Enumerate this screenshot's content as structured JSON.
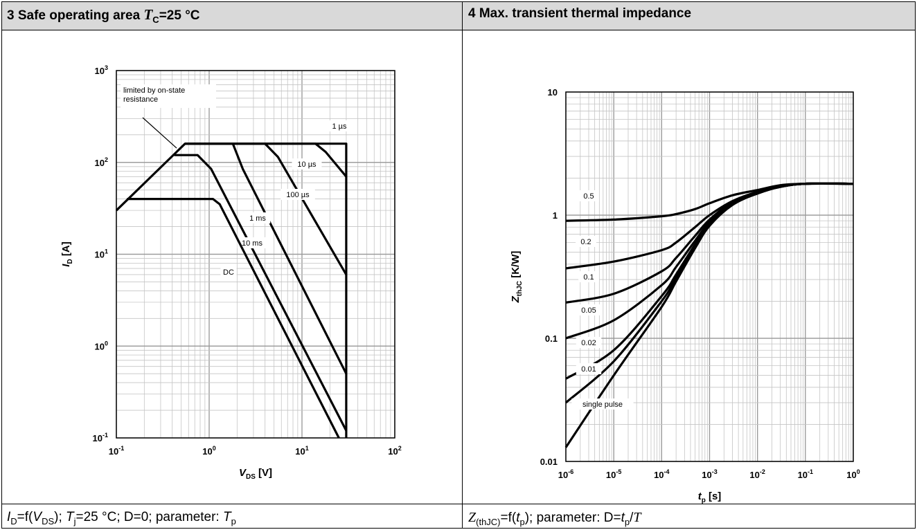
{
  "panel_left": {
    "title_num": "3 Safe operating area ",
    "title_var": "T",
    "title_sub": "C",
    "title_rest": "=25 °C",
    "caption": {
      "p1": "I",
      "p1s": "D",
      "p2": "=f(",
      "p3": "V",
      "p3s": "DS",
      "p4": "); ",
      "p5": "T",
      "p5s": "j",
      "p6": "=25 °C; D=0; parameter: ",
      "p7": "T",
      "p7s": "p"
    }
  },
  "panel_right": {
    "title": "4 Max. transient thermal impedance",
    "caption": {
      "p1": "Z",
      "p1s": "(thJC)",
      "p2": "=f(",
      "p3": "t",
      "p3s": "p",
      "p4": "); parameter: D=",
      "p5": "t",
      "p5s": "p",
      "p6": "/",
      "p7": "T"
    }
  },
  "chart_data": [
    {
      "type": "line",
      "title": "3 Safe operating area TC=25 °C",
      "xlabel": "VDS [V]",
      "xlabel_main": "V",
      "xlabel_sub": "DS",
      "xlabel_unit": " [V]",
      "ylabel": "ID [A]",
      "ylabel_main": "I",
      "ylabel_sub": "D",
      "ylabel_unit": " [A]",
      "xscale": "log",
      "yscale": "log",
      "xlim": [
        0.1,
        100
      ],
      "ylim": [
        0.1,
        1000
      ],
      "xticks": [
        {
          "m": "10",
          "e": "-1"
        },
        {
          "m": "10",
          "e": "0"
        },
        {
          "m": "10",
          "e": "1"
        },
        {
          "m": "10",
          "e": "2"
        }
      ],
      "yticks": [
        {
          "m": "10",
          "e": "-1"
        },
        {
          "m": "10",
          "e": "0"
        },
        {
          "m": "10",
          "e": "1"
        },
        {
          "m": "10",
          "e": "2"
        },
        {
          "m": "10",
          "e": "3"
        }
      ],
      "grid": true,
      "annotation": {
        "lines": [
          "limited by on-state",
          "resistance"
        ]
      },
      "series": [
        {
          "name": "1 µs",
          "label": "1 µs",
          "points": [
            [
              0.1,
              30
            ],
            [
              0.55,
              160
            ],
            [
              30,
              160
            ],
            [
              30,
              0.1
            ]
          ]
        },
        {
          "name": "10 µs",
          "label": "10 µs",
          "points": [
            [
              0.55,
              160
            ],
            [
              14,
              160
            ],
            [
              18,
              130
            ],
            [
              30,
              70
            ]
          ]
        },
        {
          "name": "100 µs",
          "label": "100 µs",
          "points": [
            [
              0.55,
              160
            ],
            [
              4,
              160
            ],
            [
              5.5,
              115
            ],
            [
              30,
              6
            ]
          ]
        },
        {
          "name": "1 ms",
          "label": "1 ms",
          "points": [
            [
              0.55,
              160
            ],
            [
              1.8,
              160
            ],
            [
              2.3,
              85
            ],
            [
              30,
              0.5
            ]
          ]
        },
        {
          "name": "10 ms",
          "label": "10 ms",
          "points": [
            [
              0.42,
              120
            ],
            [
              0.75,
              120
            ],
            [
              1.05,
              85
            ],
            [
              30,
              0.12
            ]
          ]
        },
        {
          "name": "DC",
          "label": "DC",
          "points": [
            [
              0.13,
              40
            ],
            [
              1.1,
              40
            ],
            [
              1.3,
              35
            ],
            [
              25,
              0.1
            ]
          ]
        }
      ]
    },
    {
      "type": "line",
      "title": "4 Max. transient thermal impedance",
      "xlabel": "tp [s]",
      "xlabel_main": "t",
      "xlabel_sub": "p",
      "xlabel_unit": " [s]",
      "ylabel": "ZthJC [K/W]",
      "ylabel_main": "Z",
      "ylabel_sub": "thJC",
      "ylabel_unit": " [K/W]",
      "xscale": "log",
      "yscale": "log",
      "xlim": [
        1e-06,
        1
      ],
      "ylim": [
        0.01,
        10
      ],
      "xticks": [
        {
          "m": "10",
          "e": "-6"
        },
        {
          "m": "10",
          "e": "-5"
        },
        {
          "m": "10",
          "e": "-4"
        },
        {
          "m": "10",
          "e": "-3"
        },
        {
          "m": "10",
          "e": "-2"
        },
        {
          "m": "10",
          "e": "-1"
        },
        {
          "m": "10",
          "e": "0"
        }
      ],
      "yticks": [
        {
          "m": "0.01",
          "e": ""
        },
        {
          "m": "0.1",
          "e": ""
        },
        {
          "m": "1",
          "e": ""
        },
        {
          "m": "10",
          "e": ""
        }
      ],
      "grid": true,
      "series": [
        {
          "name": "0.5",
          "label": "0.5",
          "points": [
            [
              1e-06,
              0.9
            ],
            [
              1e-05,
              0.92
            ],
            [
              0.0001,
              0.98
            ],
            [
              0.0002,
              1.02
            ],
            [
              0.0005,
              1.12
            ],
            [
              0.001,
              1.25
            ],
            [
              0.003,
              1.45
            ],
            [
              0.01,
              1.6
            ],
            [
              0.03,
              1.75
            ],
            [
              0.1,
              1.8
            ],
            [
              1,
              1.8
            ]
          ]
        },
        {
          "name": "0.2",
          "label": "0.2",
          "points": [
            [
              1e-06,
              0.37
            ],
            [
              1e-05,
              0.42
            ],
            [
              0.0001,
              0.52
            ],
            [
              0.0002,
              0.6
            ],
            [
              0.0005,
              0.8
            ],
            [
              0.001,
              1.0
            ],
            [
              0.003,
              1.3
            ],
            [
              0.01,
              1.55
            ],
            [
              0.03,
              1.72
            ],
            [
              0.1,
              1.8
            ],
            [
              1,
              1.8
            ]
          ]
        },
        {
          "name": "0.1",
          "label": "0.1",
          "points": [
            [
              1e-06,
              0.195
            ],
            [
              1e-05,
              0.23
            ],
            [
              0.0001,
              0.35
            ],
            [
              0.0002,
              0.45
            ],
            [
              0.0005,
              0.68
            ],
            [
              0.001,
              0.92
            ],
            [
              0.003,
              1.28
            ],
            [
              0.01,
              1.53
            ],
            [
              0.03,
              1.7
            ],
            [
              0.1,
              1.8
            ],
            [
              1,
              1.8
            ]
          ]
        },
        {
          "name": "0.05",
          "label": "0.05",
          "points": [
            [
              1e-06,
              0.1
            ],
            [
              1e-05,
              0.14
            ],
            [
              0.0001,
              0.27
            ],
            [
              0.0002,
              0.38
            ],
            [
              0.0005,
              0.62
            ],
            [
              0.001,
              0.88
            ],
            [
              0.003,
              1.25
            ],
            [
              0.01,
              1.52
            ],
            [
              0.03,
              1.7
            ],
            [
              0.1,
              1.8
            ],
            [
              1,
              1.8
            ]
          ]
        },
        {
          "name": "0.02",
          "label": "0.02",
          "points": [
            [
              1e-06,
              0.047
            ],
            [
              1e-05,
              0.08
            ],
            [
              0.0001,
              0.22
            ],
            [
              0.0002,
              0.33
            ],
            [
              0.0005,
              0.58
            ],
            [
              0.001,
              0.85
            ],
            [
              0.003,
              1.23
            ],
            [
              0.01,
              1.51
            ],
            [
              0.03,
              1.7
            ],
            [
              0.1,
              1.8
            ],
            [
              1,
              1.8
            ]
          ]
        },
        {
          "name": "0.01",
          "label": "0.01",
          "points": [
            [
              1e-06,
              0.03
            ],
            [
              1e-05,
              0.065
            ],
            [
              0.0001,
              0.2
            ],
            [
              0.0002,
              0.31
            ],
            [
              0.0005,
              0.56
            ],
            [
              0.001,
              0.83
            ],
            [
              0.003,
              1.22
            ],
            [
              0.01,
              1.5
            ],
            [
              0.03,
              1.7
            ],
            [
              0.1,
              1.8
            ],
            [
              1,
              1.8
            ]
          ]
        },
        {
          "name": "single pulse",
          "label": "single pulse",
          "points": [
            [
              1e-06,
              0.013
            ],
            [
              1e-05,
              0.05
            ],
            [
              0.0001,
              0.18
            ],
            [
              0.0002,
              0.29
            ],
            [
              0.0005,
              0.54
            ],
            [
              0.001,
              0.82
            ],
            [
              0.003,
              1.21
            ],
            [
              0.01,
              1.5
            ],
            [
              0.03,
              1.7
            ],
            [
              0.1,
              1.8
            ],
            [
              1,
              1.8
            ]
          ]
        }
      ]
    }
  ]
}
